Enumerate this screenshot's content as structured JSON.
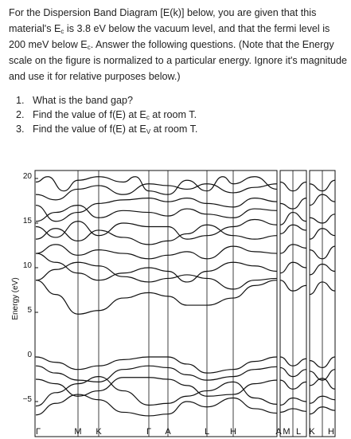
{
  "problem": {
    "intro_1": "For the Dispersion Band Diagram [E(k)] below, you are given that this material's E",
    "intro_sub_c1": "c",
    "intro_2": " is 3.8 eV below the vacuum level, and that the fermi level is 200 meV below E",
    "intro_sub_c2": "c",
    "intro_3": ". Answer the following questions. (Note that the Energy scale on the figure is normalized to a particular energy. Ignore it's magnitude and use it for relative purposes below.)",
    "questions": [
      {
        "num": "1.",
        "text": "What is the band gap?"
      },
      {
        "num": "2.",
        "pre": "Find the value of f(E) at E",
        "sub": "c",
        "post": " at room T."
      },
      {
        "num": "3.",
        "pre": "Find the value of f(E) at E",
        "sub": "V",
        "post": " at room T."
      }
    ]
  },
  "diagram": {
    "ylabel": "Energy (eV)",
    "yticks": [
      "20",
      "15",
      "10",
      "5",
      "0",
      "−5"
    ],
    "kpoints": [
      "Γ",
      "M",
      "K",
      "Γ",
      "A",
      "L",
      "H",
      "A",
      "M",
      "L",
      "K",
      "H"
    ],
    "line_color": "#111111"
  }
}
